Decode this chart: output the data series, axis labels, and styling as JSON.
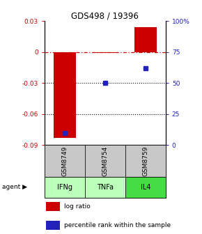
{
  "title": "GDS498 / 19396",
  "samples": [
    "GSM8749",
    "GSM8754",
    "GSM8759"
  ],
  "agents": [
    "IFNg",
    "TNFa",
    "IL4"
  ],
  "log_ratios": [
    -0.083,
    -0.001,
    0.024
  ],
  "percentile_ranks": [
    10.0,
    50.0,
    62.0
  ],
  "ylim_left": [
    -0.09,
    0.03
  ],
  "ylim_right": [
    0,
    100
  ],
  "bar_color": "#cc0000",
  "dot_color": "#2222bb",
  "zero_line_color": "#cc0000",
  "grid_color": "#000000",
  "gray_box_color": "#c8c8c8",
  "green_box_colors": [
    "#bbffbb",
    "#bbffbb",
    "#44dd44"
  ],
  "legend_bar_color": "#cc0000",
  "legend_dot_color": "#2222bb",
  "yticks_left": [
    0.03,
    0,
    -0.03,
    -0.06,
    -0.09
  ],
  "yticks_right": [
    100,
    75,
    50,
    25,
    0
  ],
  "ytick_labels_left": [
    "0.03",
    "0",
    "-0.03",
    "-0.06",
    "-0.09"
  ],
  "ytick_labels_right": [
    "100%",
    "75",
    "50",
    "25",
    "0"
  ]
}
